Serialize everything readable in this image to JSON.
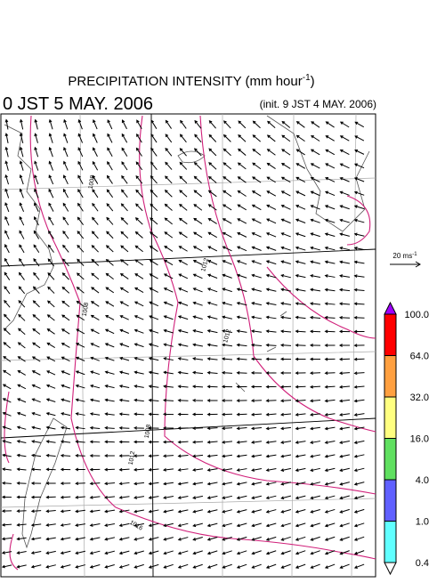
{
  "header": {
    "title": {
      "text": "PRECIPITATION INTENSITY (mm hour",
      "sup": "-1",
      "end": ")"
    },
    "valid_time": "0 JST 5 MAY. 2006",
    "init_time": "(init. 9 JST 4 MAY. 2006)"
  },
  "wind_legend": {
    "label": "20 ms",
    "sup": "-1"
  },
  "contour_labels": [
    "1008",
    "1008",
    "1012",
    "1012",
    "1008",
    "1012",
    "1016"
  ],
  "colorbar": {
    "levels": [
      {
        "value": 100,
        "label": "100.0"
      },
      {
        "value": 64,
        "label": "64.0"
      },
      {
        "value": 32,
        "label": "32.0"
      },
      {
        "value": 16,
        "label": "16.0"
      },
      {
        "value": 4,
        "label": "4.0"
      },
      {
        "value": 1,
        "label": "1.0"
      },
      {
        "value": 0.4,
        "label": "0.4"
      }
    ],
    "colors": [
      "#ff0000",
      "#ffa040",
      "#ffff80",
      "#60e060",
      "#6060ff",
      "#60ffff"
    ],
    "over_color": "#a000ff",
    "under_color": "#ffffff"
  }
}
